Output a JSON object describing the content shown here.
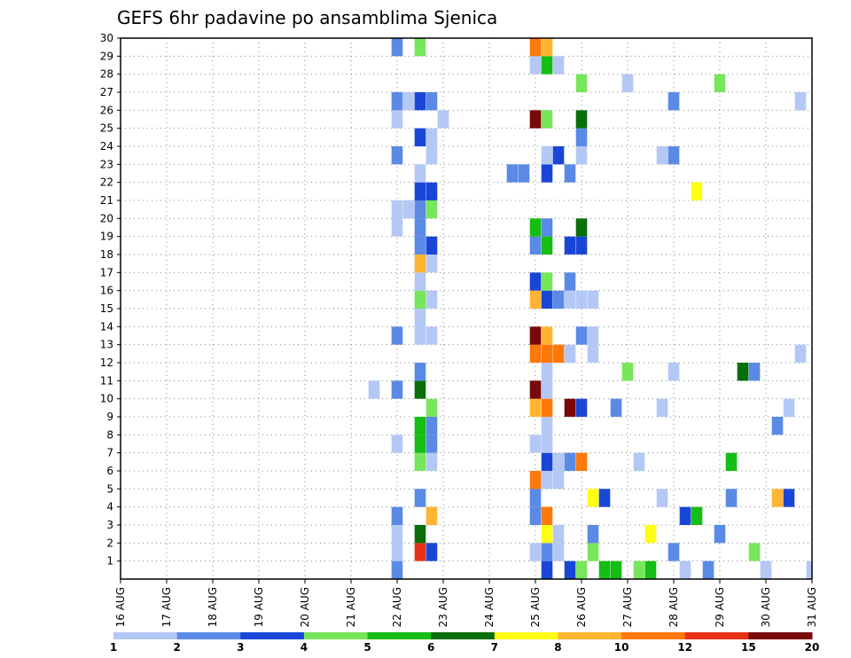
{
  "chart_data": {
    "type": "heatmap",
    "title": "GEFS 6hr padavine po ansamblima Sjenica",
    "x_tick_labels": [
      "16 AUG",
      "17 AUG",
      "18 AUG",
      "19 AUG",
      "20 AUG",
      "21 AUG",
      "22 AUG",
      "23 AUG",
      "24 AUG",
      "25 AUG",
      "26 AUG",
      "27 AUG",
      "28 AUG",
      "29 AUG",
      "30 AUG",
      "31 AUG"
    ],
    "y_tick_labels": [
      "1",
      "2",
      "3",
      "4",
      "5",
      "6",
      "7",
      "8",
      "9",
      "10",
      "11",
      "12",
      "13",
      "14",
      "15",
      "16",
      "17",
      "18",
      "19",
      "20",
      "21",
      "22",
      "23",
      "24",
      "25",
      "26",
      "27",
      "28",
      "29",
      "30"
    ],
    "y_range": [
      0,
      30
    ],
    "time_steps": 61,
    "grid": "dotted",
    "colorbar": {
      "position": "bottom",
      "boundary_labels": [
        "1",
        "2",
        "3",
        "4",
        "5",
        "6",
        "7",
        "8",
        "10",
        "12",
        "15",
        "20"
      ],
      "colors": [
        "#b4c8f5",
        "#5a8ae6",
        "#1a46d8",
        "#78e65a",
        "#14be14",
        "#0a6e0a",
        "#ffff14",
        "#ffb432",
        "#ff780a",
        "#e63214",
        "#780a0a"
      ]
    },
    "cells": [
      [
        0,
        24,
        1
      ],
      [
        0,
        37,
        2
      ],
      [
        0,
        39,
        2
      ],
      [
        0,
        40,
        3
      ],
      [
        0,
        42,
        4
      ],
      [
        0,
        43,
        4
      ],
      [
        0,
        45,
        3
      ],
      [
        0,
        46,
        4
      ],
      [
        0,
        49,
        0
      ],
      [
        0,
        51,
        1
      ],
      [
        0,
        56,
        0
      ],
      [
        0,
        60,
        0
      ],
      [
        0,
        61,
        0
      ],
      [
        1,
        24,
        0
      ],
      [
        1,
        26,
        9
      ],
      [
        1,
        27,
        2
      ],
      [
        1,
        36,
        0
      ],
      [
        1,
        37,
        1
      ],
      [
        1,
        38,
        0
      ],
      [
        1,
        41,
        3
      ],
      [
        1,
        48,
        1
      ],
      [
        1,
        55,
        3
      ],
      [
        2,
        24,
        0
      ],
      [
        2,
        26,
        5
      ],
      [
        2,
        37,
        6
      ],
      [
        2,
        38,
        0
      ],
      [
        2,
        41,
        1
      ],
      [
        2,
        46,
        6
      ],
      [
        2,
        52,
        1
      ],
      [
        3,
        24,
        1
      ],
      [
        3,
        27,
        7
      ],
      [
        3,
        36,
        1
      ],
      [
        3,
        37,
        8
      ],
      [
        3,
        49,
        2
      ],
      [
        3,
        50,
        4
      ],
      [
        4,
        26,
        1
      ],
      [
        4,
        36,
        1
      ],
      [
        4,
        41,
        6
      ],
      [
        4,
        42,
        2
      ],
      [
        4,
        53,
        1
      ],
      [
        4,
        47,
        0
      ],
      [
        4,
        57,
        7
      ],
      [
        4,
        58,
        2
      ],
      [
        5,
        36,
        8
      ],
      [
        5,
        37,
        0
      ],
      [
        5,
        38,
        0
      ],
      [
        6,
        26,
        3
      ],
      [
        6,
        27,
        0
      ],
      [
        6,
        37,
        2
      ],
      [
        6,
        38,
        0
      ],
      [
        6,
        39,
        1
      ],
      [
        6,
        40,
        8
      ],
      [
        6,
        45,
        0
      ],
      [
        6,
        53,
        4
      ],
      [
        7,
        24,
        0
      ],
      [
        7,
        26,
        4
      ],
      [
        7,
        27,
        1
      ],
      [
        7,
        36,
        0
      ],
      [
        7,
        37,
        0
      ],
      [
        8,
        26,
        4
      ],
      [
        8,
        27,
        1
      ],
      [
        8,
        37,
        0
      ],
      [
        8,
        57,
        1
      ],
      [
        8,
        61,
        2
      ],
      [
        9,
        27,
        3
      ],
      [
        9,
        36,
        7
      ],
      [
        9,
        37,
        8
      ],
      [
        9,
        39,
        10
      ],
      [
        9,
        40,
        2
      ],
      [
        9,
        43,
        1
      ],
      [
        9,
        47,
        0
      ],
      [
        9,
        58,
        0
      ],
      [
        10,
        22,
        0
      ],
      [
        10,
        24,
        1
      ],
      [
        10,
        26,
        5
      ],
      [
        10,
        36,
        10
      ],
      [
        10,
        37,
        0
      ],
      [
        10,
        62,
        5
      ],
      [
        10,
        63,
        0
      ],
      [
        10,
        64,
        0
      ],
      [
        10,
        65,
        2
      ],
      [
        11,
        26,
        1
      ],
      [
        11,
        37,
        0
      ],
      [
        11,
        44,
        3
      ],
      [
        11,
        48,
        0
      ],
      [
        11,
        54,
        5
      ],
      [
        11,
        55,
        1
      ],
      [
        12,
        36,
        8
      ],
      [
        12,
        37,
        8
      ],
      [
        12,
        38,
        8
      ],
      [
        12,
        39,
        0
      ],
      [
        12,
        41,
        0
      ],
      [
        12,
        59,
        0
      ],
      [
        13,
        24,
        1
      ],
      [
        13,
        26,
        0
      ],
      [
        13,
        27,
        0
      ],
      [
        13,
        36,
        10
      ],
      [
        13,
        37,
        7
      ],
      [
        13,
        40,
        1
      ],
      [
        13,
        41,
        0
      ],
      [
        14,
        26,
        0
      ],
      [
        14,
        65,
        0
      ],
      [
        14,
        66,
        0
      ],
      [
        14,
        68,
        2
      ],
      [
        14,
        69,
        2
      ],
      [
        15,
        26,
        3
      ],
      [
        15,
        27,
        0
      ],
      [
        15,
        36,
        7
      ],
      [
        15,
        37,
        2
      ],
      [
        15,
        38,
        1
      ],
      [
        15,
        39,
        0
      ],
      [
        15,
        40,
        0
      ],
      [
        15,
        41,
        0
      ],
      [
        15,
        62,
        0
      ],
      [
        15,
        63,
        3
      ],
      [
        15,
        66,
        1
      ],
      [
        16,
        26,
        0
      ],
      [
        16,
        36,
        2
      ],
      [
        16,
        37,
        3
      ],
      [
        16,
        39,
        1
      ],
      [
        16,
        62,
        3
      ],
      [
        17,
        26,
        7
      ],
      [
        17,
        27,
        0
      ],
      [
        17,
        62,
        9
      ],
      [
        17,
        69,
        1
      ],
      [
        18,
        26,
        1
      ],
      [
        18,
        27,
        2
      ],
      [
        18,
        36,
        1
      ],
      [
        18,
        37,
        4
      ],
      [
        18,
        39,
        2
      ],
      [
        18,
        40,
        2
      ],
      [
        19,
        24,
        0
      ],
      [
        19,
        26,
        1
      ],
      [
        19,
        36,
        4
      ],
      [
        19,
        37,
        1
      ],
      [
        19,
        40,
        5
      ],
      [
        20,
        24,
        0
      ],
      [
        20,
        25,
        0
      ],
      [
        20,
        26,
        1
      ],
      [
        20,
        27,
        3
      ],
      [
        21,
        26,
        2
      ],
      [
        21,
        27,
        2
      ],
      [
        21,
        50,
        6
      ],
      [
        21,
        62,
        0
      ],
      [
        22,
        26,
        0
      ],
      [
        22,
        34,
        1
      ],
      [
        22,
        35,
        1
      ],
      [
        22,
        37,
        2
      ],
      [
        22,
        39,
        1
      ],
      [
        23,
        24,
        1
      ],
      [
        23,
        27,
        0
      ],
      [
        23,
        37,
        0
      ],
      [
        23,
        38,
        2
      ],
      [
        23,
        40,
        0
      ],
      [
        23,
        47,
        0
      ],
      [
        23,
        48,
        1
      ],
      [
        24,
        26,
        2
      ],
      [
        24,
        27,
        0
      ],
      [
        24,
        40,
        1
      ],
      [
        24,
        63,
        0
      ],
      [
        24,
        67,
        0
      ],
      [
        24,
        68,
        0
      ],
      [
        24,
        69,
        1
      ],
      [
        25,
        24,
        0
      ],
      [
        25,
        28,
        0
      ],
      [
        25,
        36,
        10
      ],
      [
        25,
        37,
        3
      ],
      [
        25,
        40,
        5
      ],
      [
        26,
        24,
        1
      ],
      [
        26,
        25,
        0
      ],
      [
        26,
        26,
        2
      ],
      [
        26,
        27,
        1
      ],
      [
        26,
        48,
        1
      ],
      [
        26,
        59,
        0
      ],
      [
        27,
        40,
        3
      ],
      [
        27,
        44,
        0
      ],
      [
        27,
        52,
        3
      ],
      [
        28,
        36,
        0
      ],
      [
        28,
        37,
        4
      ],
      [
        28,
        38,
        0
      ],
      [
        29,
        24,
        1
      ],
      [
        29,
        26,
        3
      ],
      [
        29,
        36,
        8
      ],
      [
        29,
        37,
        7
      ],
      [
        29,
        69,
        1
      ]
    ]
  }
}
